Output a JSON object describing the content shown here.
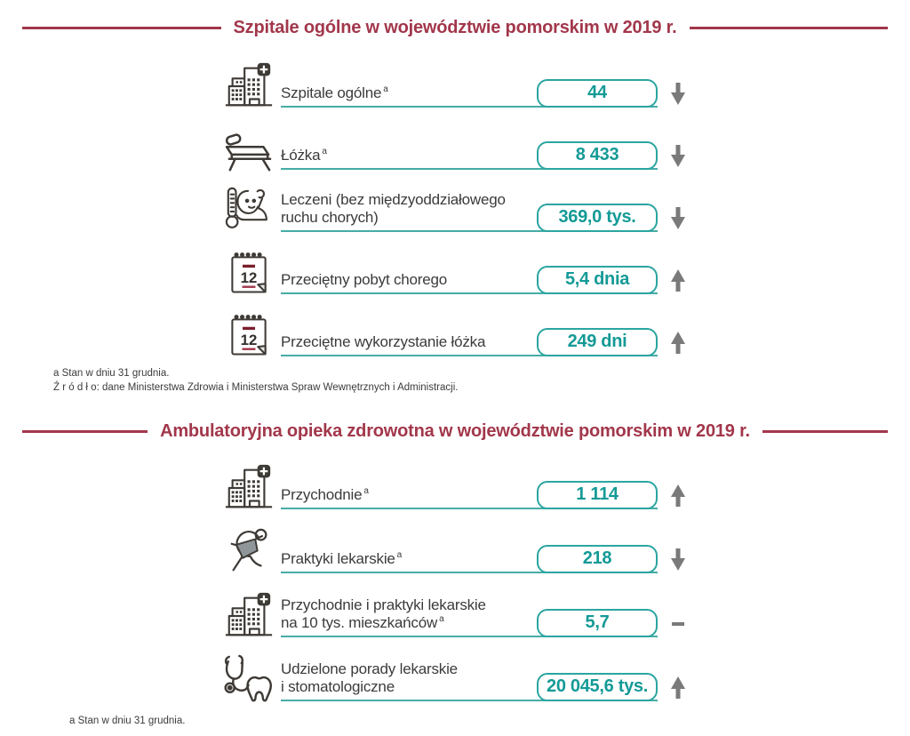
{
  "colors": {
    "accent_red": "#a2374b",
    "teal_value": "#149a96",
    "teal_border": "#2ba5a0",
    "icon_dark": "#3e3a36",
    "arrow_gray": "#7a7a7a",
    "text": "#3b3b3b"
  },
  "icons": {
    "calendar_day": "12"
  },
  "sections": [
    {
      "title": "Szpitale ogólne w województwie pomorskim w 2019 r.",
      "rows": [
        {
          "icon": "hospital-building-icon",
          "lines": [
            {
              "text": "Szpitale ogólne",
              "sup": "a"
            }
          ],
          "value": "44",
          "trend": "down"
        },
        {
          "icon": "hospital-bed-icon",
          "lines": [
            {
              "text": "Łóżka",
              "sup": "a"
            }
          ],
          "value": "8 433",
          "trend": "down"
        },
        {
          "icon": "patient-thermometer-icon",
          "lines": [
            {
              "text": "Leczeni (bez międzyoddziałowego"
            },
            {
              "text": "ruchu chorych)"
            }
          ],
          "value": "369,0 tys.",
          "trend": "down"
        },
        {
          "icon": "calendar-icon",
          "lines": [
            {
              "text": "Przeciętny pobyt chorego"
            }
          ],
          "value": "5,4 dnia",
          "trend": "up"
        },
        {
          "icon": "calendar-icon",
          "lines": [
            {
              "text": "Przeciętne wykorzystanie łóżka"
            }
          ],
          "value": "249 dni",
          "trend": "up"
        }
      ],
      "footnotes": [
        "a Stan w dniu 31 grudnia.",
        "Ź r ó d ł o: dane Ministerstwa Zdrowia i Ministerstwa Spraw Wewnętrznych i Administracji."
      ]
    },
    {
      "title": "Ambulatoryjna opieka zdrowotna w województwie pomorskim w 2019 r.",
      "rows": [
        {
          "icon": "clinic-building-icon",
          "lines": [
            {
              "text": "Przychodnie",
              "sup": "a"
            }
          ],
          "value": "1 114",
          "trend": "up"
        },
        {
          "icon": "masked-doctor-icon",
          "lines": [
            {
              "text": "Praktyki lekarskie",
              "sup": "a"
            }
          ],
          "value": "218",
          "trend": "down"
        },
        {
          "icon": "clinic-building-icon",
          "lines": [
            {
              "text": "Przychodnie i praktyki lekarskie"
            },
            {
              "text": "na 10 tys. mieszkańców",
              "sup": "a"
            }
          ],
          "value": "5,7",
          "trend": "same"
        },
        {
          "icon": "stethoscope-tooth-icon",
          "lines": [
            {
              "text": "Udzielone porady lekarskie"
            },
            {
              "text": "i stomatologiczne"
            }
          ],
          "value": "20 045,6 tys.",
          "trend": "up"
        }
      ],
      "footnotes": [
        "a Stan w dniu 31 grudnia."
      ]
    }
  ]
}
